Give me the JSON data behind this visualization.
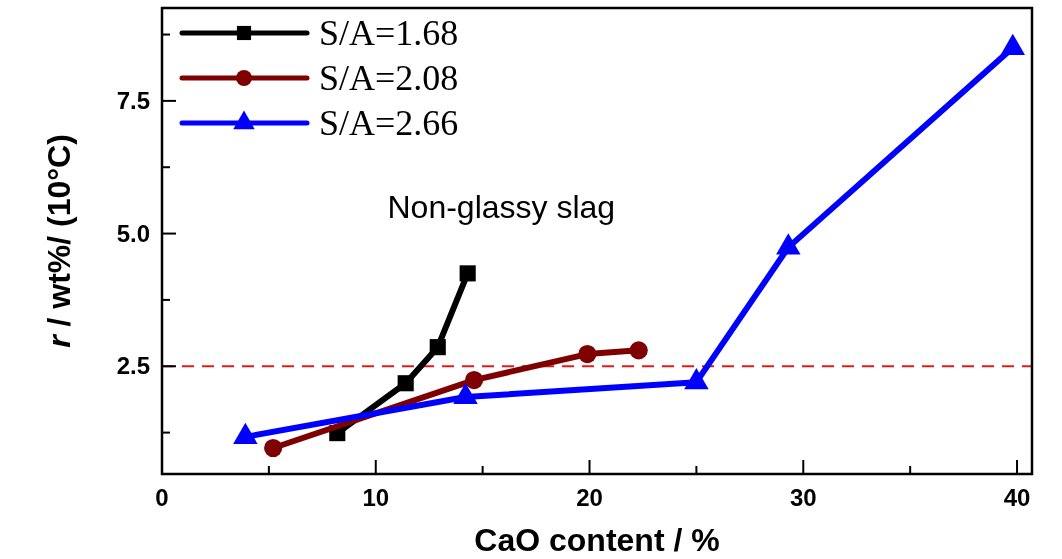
{
  "chart_data": {
    "type": "line",
    "xlabel": "CaO content / %",
    "ylabel": "r / wt%/ (10°C)",
    "xlim": [
      0,
      40.7
    ],
    "ylim": [
      0.47,
      9.25
    ],
    "xticks": [
      0,
      {
        "value": 5,
        "label": null
      },
      10,
      {
        "value": 15,
        "label": null
      },
      20,
      {
        "value": 25,
        "label": null
      },
      30,
      {
        "value": 35,
        "label": null
      },
      40
    ],
    "yticks": [
      {
        "value": 1.25,
        "label": null
      },
      2.5,
      {
        "value": 3.75,
        "label": null
      },
      {
        "value": 5,
        "label": "5.0"
      },
      {
        "value": 6.25,
        "label": null
      },
      7.5,
      {
        "value": 8.75,
        "label": null
      }
    ],
    "legend": "top left",
    "grid": false,
    "series": [
      {
        "name": "S/A=1.68",
        "color": "#000000",
        "marker": "square",
        "x": [
          8.2,
          11.4,
          12.9,
          14.3
        ],
        "values": [
          1.24,
          2.18,
          2.86,
          4.25
        ]
      },
      {
        "name": "S/A=2.08",
        "color": "#7f0000",
        "marker": "circle",
        "x": [
          5.2,
          14.6,
          19.9,
          22.3
        ],
        "values": [
          0.96,
          2.24,
          2.73,
          2.8
        ]
      },
      {
        "name": "S/A=2.66",
        "color": "#0000ff",
        "marker": "triangle",
        "x": [
          3.9,
          14.2,
          25.0,
          29.3,
          39.8
        ],
        "values": [
          1.17,
          1.92,
          2.2,
          4.74,
          8.5
        ]
      }
    ],
    "ref_lines": [
      {
        "axis": "y",
        "value": 2.5,
        "color": "#e41a1c",
        "line_style": "dashed"
      }
    ],
    "annotations": [
      "Non-glassy slag"
    ]
  }
}
